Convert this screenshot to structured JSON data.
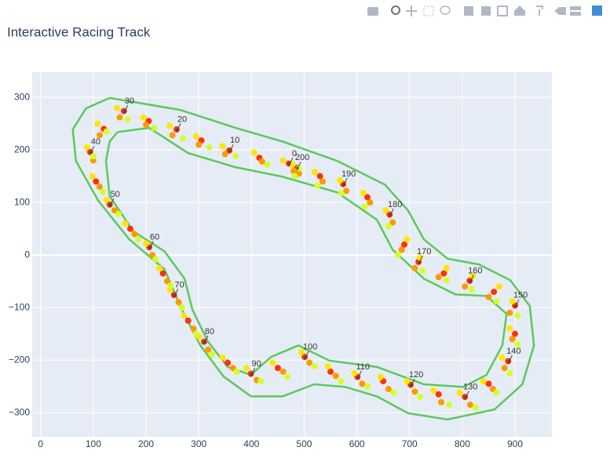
{
  "chart_data": {
    "type": "scatter",
    "title": "Interactive Racing Track",
    "xlim": [
      -16,
      970
    ],
    "ylim": [
      -346,
      348
    ],
    "xticks": [
      0,
      100,
      200,
      300,
      400,
      500,
      600,
      700,
      800,
      900
    ],
    "yticks": [
      {
        "value": -300,
        "label": "−300"
      },
      {
        "value": -200,
        "label": "−200"
      },
      {
        "value": -100,
        "label": "−100"
      },
      0,
      100,
      200,
      300
    ],
    "grid": true,
    "track": [
      {
        "color": "#5cc85c",
        "x": [
          131,
          265,
          370,
          459,
          563,
          653,
          697,
          727,
          772,
          832,
          891,
          928,
          936,
          914,
          861,
          772,
          697,
          638,
          578,
          519,
          459,
          399,
          347,
          303,
          268,
          235,
          168,
          109,
          67,
          61,
          86,
          131
        ],
        "y": [
          299,
          276,
          242,
          216,
          179,
          134,
          85,
          30,
          -7,
          -18,
          -48,
          -97,
          -172,
          -246,
          -294,
          -313,
          -301,
          -269,
          -251,
          -246,
          -269,
          -269,
          -231,
          -172,
          -104,
          -27,
          30,
          104,
          179,
          239,
          279,
          299
        ]
      },
      {
        "color": "#5cc85c",
        "x": [
          146,
          206,
          280,
          370,
          459,
          563,
          638,
          668,
          727,
          787,
          846,
          884,
          876,
          846,
          802,
          727,
          638,
          548,
          489,
          437,
          399,
          355,
          317,
          288,
          273,
          235,
          176,
          131,
          124,
          131,
          146
        ],
        "y": [
          234,
          242,
          194,
          167,
          149,
          119,
          67,
          10,
          -45,
          -75,
          -78,
          -112,
          -172,
          -228,
          -251,
          -246,
          -213,
          -201,
          -172,
          -194,
          -228,
          -213,
          -164,
          -104,
          -45,
          7,
          45,
          112,
          179,
          216,
          234
        ]
      }
    ],
    "series": [
      {
        "color": "#ff3300",
        "x": [
          471,
          415,
          358,
          305,
          258,
          205,
          158,
          120,
          94,
          105,
          131,
          170,
          206,
          232,
          253,
          280,
          310,
          355,
          399,
          450,
          501,
          550,
          601,
          650,
          702,
          755,
          805,
          850,
          887,
          900,
          900,
          860,
          814,
          765,
          717,
          690,
          662,
          620,
          574,
          530,
          486
        ],
        "y": [
          174,
          185,
          199,
          218,
          239,
          255,
          274,
          240,
          196,
          140,
          96,
          50,
          15,
          -35,
          -76,
          -125,
          -165,
          -205,
          -226,
          -215,
          -194,
          -222,
          -232,
          -240,
          -247,
          -265,
          -270,
          -245,
          -202,
          -150,
          -96,
          -70,
          -49,
          -35,
          -13,
          20,
          77,
          110,
          135,
          150,
          166
        ]
      },
      {
        "color": "#ff9900",
        "x": [
          480,
          420,
          350,
          300,
          250,
          200,
          150,
          112,
          100,
          112,
          140,
          178,
          212,
          240,
          262,
          290,
          318,
          365,
          410,
          460,
          510,
          560,
          610,
          660,
          710,
          760,
          815,
          858,
          880,
          895,
          890,
          850,
          805,
          755,
          710,
          685,
          668,
          625,
          580,
          535,
          490
        ],
        "y": [
          160,
          178,
          192,
          210,
          228,
          248,
          262,
          228,
          180,
          130,
          85,
          40,
          0,
          -50,
          -90,
          -140,
          -180,
          -215,
          -238,
          -222,
          -205,
          -230,
          -245,
          -255,
          -260,
          -280,
          -285,
          -255,
          -215,
          -160,
          -110,
          -80,
          -60,
          -42,
          -25,
          10,
          62,
          100,
          122,
          140,
          155
        ]
      },
      {
        "color": "#ffe600",
        "x": [
          460,
          405,
          345,
          295,
          245,
          195,
          145,
          108,
          88,
          98,
          125,
          160,
          200,
          225,
          245,
          272,
          300,
          345,
          390,
          440,
          495,
          545,
          595,
          645,
          695,
          745,
          795,
          840,
          875,
          890,
          895,
          870,
          820,
          770,
          720,
          695,
          655,
          612,
          568,
          520,
          478
        ],
        "y": [
          180,
          195,
          207,
          226,
          246,
          262,
          280,
          250,
          205,
          150,
          105,
          60,
          22,
          -25,
          -65,
          -115,
          -155,
          -195,
          -215,
          -205,
          -185,
          -212,
          -225,
          -232,
          -240,
          -258,
          -262,
          -240,
          -195,
          -140,
          -88,
          -60,
          -40,
          -25,
          -5,
          30,
          85,
          118,
          142,
          158,
          172
        ]
      },
      {
        "color": "#d4ff2a",
        "x": [
          490,
          430,
          370,
          320,
          270,
          215,
          165,
          125,
          100,
          118,
          148,
          185,
          218,
          247,
          268,
          295,
          325,
          372,
          418,
          468,
          520,
          570,
          620,
          670,
          720,
          775,
          825,
          865,
          890,
          905,
          905,
          865,
          818,
          770,
          725,
          678,
          660,
          615,
          570,
          525,
          482
        ],
        "y": [
          165,
          172,
          188,
          205,
          222,
          242,
          258,
          235,
          188,
          120,
          78,
          30,
          -8,
          -58,
          -100,
          -150,
          -190,
          -222,
          -240,
          -232,
          -212,
          -240,
          -250,
          -262,
          -270,
          -285,
          -290,
          -262,
          -225,
          -170,
          -115,
          -88,
          -65,
          -48,
          -30,
          0,
          55,
          92,
          118,
          132,
          150
        ]
      }
    ],
    "annotations": [
      {
        "text": "0",
        "x": 471,
        "y": 169
      },
      {
        "text": "10",
        "x": 358,
        "y": 194
      },
      {
        "text": "20",
        "x": 258,
        "y": 234
      },
      {
        "text": "30",
        "x": 158,
        "y": 269
      },
      {
        "text": "40",
        "x": 94,
        "y": 191
      },
      {
        "text": "50",
        "x": 131,
        "y": 91
      },
      {
        "text": "60",
        "x": 206,
        "y": 10
      },
      {
        "text": "70",
        "x": 253,
        "y": -81
      },
      {
        "text": "80",
        "x": 310,
        "y": -170
      },
      {
        "text": "90",
        "x": 399,
        "y": -231
      },
      {
        "text": "100",
        "x": 501,
        "y": -199
      },
      {
        "text": "110",
        "x": 601,
        "y": -237
      },
      {
        "text": "120",
        "x": 702,
        "y": -252
      },
      {
        "text": "130",
        "x": 805,
        "y": -275
      },
      {
        "text": "140",
        "x": 887,
        "y": -207
      },
      {
        "text": "150",
        "x": 900,
        "y": -101
      },
      {
        "text": "160",
        "x": 814,
        "y": -54
      },
      {
        "text": "170",
        "x": 717,
        "y": -18
      },
      {
        "text": "180",
        "x": 662,
        "y": 72
      },
      {
        "text": "190",
        "x": 574,
        "y": 130
      },
      {
        "text": "200",
        "x": 486,
        "y": 161
      }
    ]
  }
}
